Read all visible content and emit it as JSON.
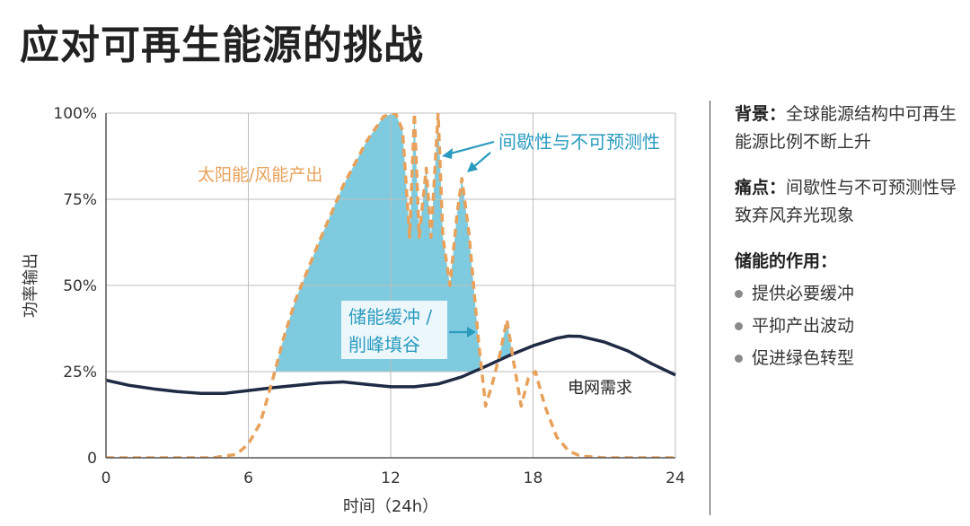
{
  "title": "应对可再生能源的挑战",
  "side": {
    "background_label": "背景：",
    "background_text": "全球能源结构中可再生能源比例不断上升",
    "pain_label": "痛点：",
    "pain_text": "间歇性与不可预测性导致弃风弃光现象",
    "role_title": "储能的作用：",
    "bullets": [
      "提供必要缓冲",
      "平抑产出波动",
      "促进绿色转型"
    ]
  },
  "chart_data": {
    "type": "line",
    "xlabel": "时间（24h）",
    "ylabel": "功率输出",
    "xlim": [
      0,
      24
    ],
    "ylim": [
      0,
      100
    ],
    "x_ticks": [
      "0",
      "6",
      "12",
      "18",
      "24"
    ],
    "y_ticks": [
      "0",
      "25%",
      "50%",
      "75%",
      "100%"
    ],
    "grid": true,
    "series": [
      {
        "name": "太阳能/风能产出",
        "style": "dashed",
        "color": "#e8a15a",
        "x": [
          0,
          4.5,
          5.5,
          6,
          6.5,
          7,
          7.5,
          8,
          9,
          10,
          11,
          11.7,
          12.2,
          12.5,
          12.8,
          13,
          13.2,
          13.5,
          13.7,
          14,
          14.2,
          14.5,
          14.8,
          15,
          15.3,
          15.7,
          16,
          16.3,
          16.6,
          16.9,
          17.2,
          17.5,
          17.8,
          18.1,
          18.5,
          19,
          19.5,
          20,
          21,
          24
        ],
        "y": [
          0,
          0,
          1,
          4,
          10,
          22,
          35,
          46,
          63,
          79,
          92,
          99,
          100,
          95,
          64,
          100,
          64,
          84,
          64,
          100,
          64,
          50,
          71,
          81,
          65,
          34,
          15,
          22,
          30,
          40,
          27,
          15,
          23,
          25,
          15,
          6,
          2,
          0.5,
          0,
          0
        ]
      },
      {
        "name": "电网需求",
        "style": "solid",
        "color": "#1f2a44",
        "x": [
          0,
          1,
          2,
          3,
          4,
          5,
          6,
          7,
          8,
          9,
          10,
          11,
          12,
          13,
          14,
          15,
          16,
          17,
          18,
          19,
          19.5,
          20,
          21,
          22,
          23,
          24
        ],
        "y": [
          22.5,
          21,
          20,
          19.2,
          18.7,
          18.7,
          19.5,
          20.3,
          21,
          21.7,
          22,
          21.3,
          20.6,
          20.6,
          21.4,
          23.5,
          26.5,
          29.7,
          32.5,
          34.7,
          35.3,
          35.2,
          33.6,
          31,
          27.3,
          24
        ]
      }
    ],
    "annotations": [
      {
        "text": "间歇性与不可预测性",
        "color": "#2a9bbf"
      },
      {
        "text": "储能缓冲 /",
        "color": "#2a9bbf"
      },
      {
        "text": "削峰填谷",
        "color": "#2a9bbf"
      },
      {
        "text": "太阳能/风能产出",
        "color": "#e8a15a"
      },
      {
        "text": "电网需求",
        "color": "#222222"
      }
    ],
    "colors": {
      "fill": "#7ecbe0",
      "accent": "#2a9bbf"
    }
  }
}
